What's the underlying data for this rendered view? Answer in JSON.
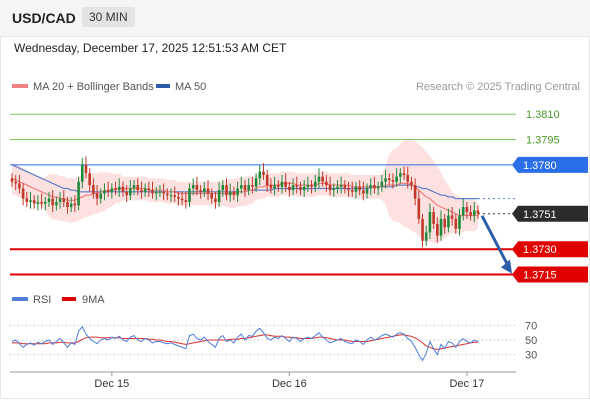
{
  "header": {
    "pair": "USD/CAD",
    "timeframe": "30 MIN"
  },
  "timestamp": "Wednesday, December 17, 2025 12:51:53 AM CET",
  "legend": {
    "ma20": "MA 20 + Bollinger Bands",
    "ma50": "MA 50",
    "credit": "Research © 2025 Trading Central"
  },
  "rsi_legend": {
    "rsi": "RSI",
    "ma": "9MA"
  },
  "colors": {
    "resistance": "#7ec860",
    "support": "#e00000",
    "pivot": "#2a6ee8",
    "ma20": "#f08080",
    "ma50": "#5b7fc7",
    "band": "#fde0e0",
    "candle_up": "#1f8a3a",
    "candle_down": "#c0392b",
    "arrow": "#2d5fa8",
    "rsi": "#4f7fd6",
    "rsi_ma": "#d93030"
  },
  "chart_data": {
    "type": "candlestick",
    "ylim": [
      1.3707,
      1.3822
    ],
    "levels": [
      {
        "label": "1.3810",
        "value": 1.381,
        "kind": "resistance"
      },
      {
        "label": "1.3795",
        "value": 1.3795,
        "kind": "resistance"
      },
      {
        "label": "1.3780",
        "value": 1.378,
        "kind": "pivot"
      },
      {
        "label": "1.3751",
        "value": 1.3751,
        "kind": "last"
      },
      {
        "label": "1.3730",
        "value": 1.373,
        "kind": "support"
      },
      {
        "label": "1.3715",
        "value": 1.3715,
        "kind": "support"
      }
    ],
    "x_ticks": [
      {
        "label": "Dec 15",
        "index": 27
      },
      {
        "label": "Dec 16",
        "index": 75
      },
      {
        "label": "Dec 17",
        "index": 123
      }
    ],
    "closes": [
      1.377,
      1.3769,
      1.3766,
      1.376,
      1.3758,
      1.3759,
      1.3757,
      1.3758,
      1.3757,
      1.3758,
      1.376,
      1.3756,
      1.3758,
      1.376,
      1.3758,
      1.3755,
      1.3757,
      1.3756,
      1.377,
      1.378,
      1.3775,
      1.3768,
      1.3763,
      1.376,
      1.3763,
      1.3765,
      1.3764,
      1.3766,
      1.3765,
      1.3767,
      1.3764,
      1.3762,
      1.3766,
      1.3768,
      1.3765,
      1.3764,
      1.3766,
      1.3765,
      1.3763,
      1.3764,
      1.3764,
      1.3763,
      1.3762,
      1.3762,
      1.3761,
      1.376,
      1.3759,
      1.3758,
      1.3766,
      1.3768,
      1.3765,
      1.3764,
      1.3766,
      1.3763,
      1.376,
      1.3758,
      1.3765,
      1.3768,
      1.3762,
      1.3764,
      1.3762,
      1.3766,
      1.3768,
      1.3765,
      1.3768,
      1.3767,
      1.3772,
      1.3776,
      1.3774,
      1.3768,
      1.3766,
      1.3768,
      1.3767,
      1.377,
      1.3767,
      1.3765,
      1.3768,
      1.3767,
      1.3765,
      1.3767,
      1.3768,
      1.3767,
      1.377,
      1.3773,
      1.377,
      1.3768,
      1.3765,
      1.3766,
      1.3767,
      1.3768,
      1.3766,
      1.3765,
      1.3764,
      1.3767,
      1.3765,
      1.3763,
      1.3766,
      1.3768,
      1.3766,
      1.3767,
      1.377,
      1.3772,
      1.3771,
      1.377,
      1.3773,
      1.3775,
      1.3774,
      1.377,
      1.3768,
      1.376,
      1.3748,
      1.3735,
      1.374,
      1.3752,
      1.3745,
      1.3738,
      1.3748,
      1.3743,
      1.375,
      1.3748,
      1.3742,
      1.375,
      1.3755,
      1.3752,
      1.375,
      1.3753,
      1.3751
    ],
    "ma20": [
      1.3772,
      1.3771,
      1.377,
      1.3769,
      1.3768,
      1.3767,
      1.3766,
      1.3765,
      1.3764,
      1.3763,
      1.3762,
      1.3761,
      1.3761,
      1.376,
      1.376,
      1.3759,
      1.3759,
      1.3759,
      1.376,
      1.3761,
      1.3762,
      1.3762,
      1.3763,
      1.3763,
      1.3764,
      1.3764,
      1.3765,
      1.3765,
      1.3766,
      1.3766,
      1.3766,
      1.3766,
      1.3766,
      1.3766,
      1.3766,
      1.3766,
      1.3766,
      1.3765,
      1.3765,
      1.3765,
      1.3765,
      1.3765,
      1.3764,
      1.3764,
      1.3764,
      1.3763,
      1.3763,
      1.3763,
      1.3763,
      1.3763,
      1.3763,
      1.3763,
      1.3763,
      1.3763,
      1.3763,
      1.3763,
      1.3763,
      1.3763,
      1.3763,
      1.3763,
      1.3763,
      1.3764,
      1.3764,
      1.3764,
      1.3765,
      1.3765,
      1.3766,
      1.3767,
      1.3767,
      1.3768,
      1.3768,
      1.3768,
      1.3768,
      1.3769,
      1.3769,
      1.3769,
      1.3769,
      1.3768,
      1.3768,
      1.3768,
      1.3768,
      1.3768,
      1.3768,
      1.3769,
      1.3769,
      1.3769,
      1.3768,
      1.3768,
      1.3768,
      1.3768,
      1.3768,
      1.3768,
      1.3767,
      1.3767,
      1.3767,
      1.3767,
      1.3767,
      1.3767,
      1.3767,
      1.3767,
      1.3767,
      1.3768,
      1.3768,
      1.3768,
      1.3768,
      1.3769,
      1.3769,
      1.3769,
      1.3768,
      1.3767,
      1.3765,
      1.3763,
      1.3761,
      1.376,
      1.3758,
      1.3756,
      1.3755,
      1.3754,
      1.3753,
      1.3752,
      1.3751,
      1.375,
      1.375,
      1.375,
      1.375,
      1.375,
      1.375
    ],
    "ma50": [
      1.378,
      1.3779,
      1.3778,
      1.3777,
      1.3776,
      1.3775,
      1.3774,
      1.3773,
      1.3772,
      1.3771,
      1.377,
      1.3769,
      1.3768,
      1.3767,
      1.3766,
      1.3766,
      1.3765,
      1.3765,
      1.3764,
      1.3764,
      1.3764,
      1.3764,
      1.3764,
      1.3764,
      1.3764,
      1.3764,
      1.3764,
      1.3764,
      1.3764,
      1.3764,
      1.3764,
      1.3764,
      1.3764,
      1.3764,
      1.3764,
      1.3764,
      1.3764,
      1.3764,
      1.3764,
      1.3764,
      1.3764,
      1.3764,
      1.3764,
      1.3764,
      1.3764,
      1.3764,
      1.3764,
      1.3764,
      1.3764,
      1.3764,
      1.3764,
      1.3764,
      1.3764,
      1.3764,
      1.3764,
      1.3764,
      1.3764,
      1.3764,
      1.3764,
      1.3764,
      1.3764,
      1.3764,
      1.3764,
      1.3764,
      1.3765,
      1.3765,
      1.3765,
      1.3765,
      1.3765,
      1.3765,
      1.3765,
      1.3766,
      1.3766,
      1.3766,
      1.3766,
      1.3766,
      1.3766,
      1.3766,
      1.3766,
      1.3766,
      1.3766,
      1.3766,
      1.3766,
      1.3766,
      1.3766,
      1.3766,
      1.3766,
      1.3766,
      1.3766,
      1.3766,
      1.3766,
      1.3766,
      1.3766,
      1.3766,
      1.3766,
      1.3766,
      1.3766,
      1.3767,
      1.3767,
      1.3767,
      1.3767,
      1.3767,
      1.3767,
      1.3767,
      1.3768,
      1.3768,
      1.3768,
      1.3768,
      1.3768,
      1.3767,
      1.3767,
      1.3766,
      1.3766,
      1.3765,
      1.3764,
      1.3763,
      1.3762,
      1.3762,
      1.3761,
      1.3761,
      1.376,
      1.376,
      1.376,
      1.376,
      1.376,
      1.376,
      1.376
    ],
    "rsi": {
      "ylim": [
        20,
        80
      ],
      "ticks": [
        70,
        50,
        30
      ],
      "values": [
        48,
        50,
        45,
        40,
        44,
        46,
        43,
        47,
        45,
        48,
        50,
        44,
        48,
        52,
        46,
        40,
        46,
        44,
        62,
        68,
        58,
        52,
        48,
        45,
        50,
        52,
        50,
        54,
        52,
        55,
        50,
        48,
        54,
        56,
        50,
        48,
        52,
        50,
        46,
        48,
        48,
        46,
        45,
        46,
        44,
        42,
        40,
        38,
        56,
        58,
        52,
        50,
        54,
        48,
        44,
        40,
        52,
        56,
        48,
        50,
        46,
        54,
        58,
        50,
        56,
        55,
        62,
        66,
        60,
        52,
        50,
        54,
        52,
        56,
        52,
        48,
        54,
        52,
        48,
        52,
        54,
        52,
        56,
        60,
        54,
        50,
        46,
        48,
        50,
        52,
        48,
        46,
        45,
        50,
        48,
        44,
        50,
        54,
        50,
        52,
        56,
        58,
        56,
        54,
        58,
        60,
        58,
        52,
        48,
        40,
        30,
        22,
        32,
        48,
        38,
        30,
        44,
        38,
        48,
        46,
        40,
        48,
        52,
        48,
        46,
        50,
        48
      ],
      "ma_values": [
        46,
        46,
        46,
        45,
        45,
        45,
        45,
        45,
        45,
        45,
        46,
        46,
        46,
        47,
        47,
        46,
        46,
        46,
        48,
        51,
        53,
        54,
        54,
        54,
        53,
        53,
        53,
        53,
        53,
        53,
        52,
        52,
        52,
        52,
        52,
        52,
        52,
        51,
        51,
        50,
        50,
        49,
        48,
        48,
        47,
        46,
        45,
        44,
        45,
        46,
        47,
        48,
        49,
        50,
        50,
        50,
        50,
        50,
        50,
        51,
        51,
        51,
        52,
        52,
        53,
        54,
        55,
        56,
        57,
        57,
        56,
        55,
        55,
        55,
        54,
        54,
        53,
        53,
        52,
        52,
        52,
        52,
        53,
        54,
        54,
        53,
        52,
        51,
        50,
        50,
        50,
        49,
        48,
        48,
        48,
        48,
        48,
        49,
        50,
        51,
        52,
        53,
        54,
        55,
        56,
        57,
        57,
        56,
        55,
        53,
        50,
        46,
        42,
        40,
        38,
        37,
        38,
        39,
        40,
        41,
        42,
        43,
        44,
        45,
        46,
        47,
        47
      ]
    }
  }
}
